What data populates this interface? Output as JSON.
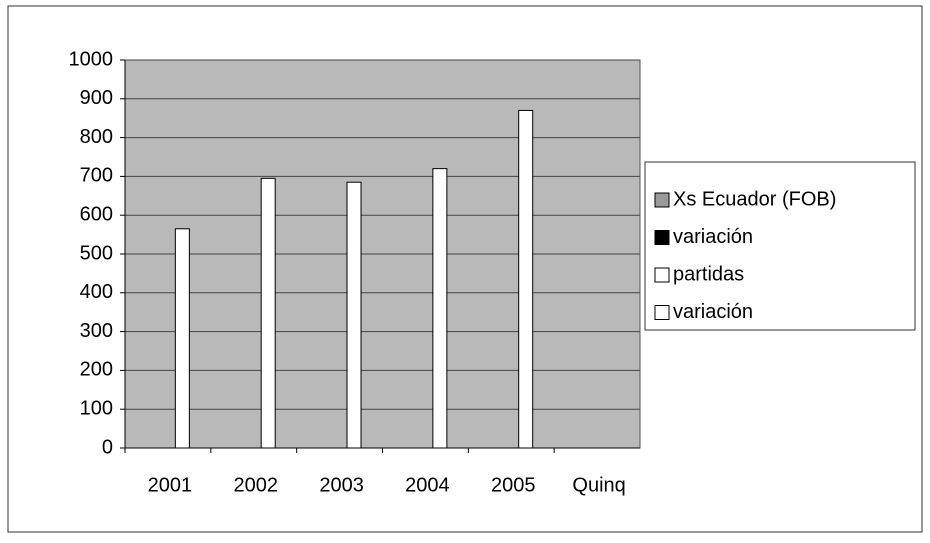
{
  "chart_data": {
    "type": "bar",
    "categories": [
      "2001",
      "2002",
      "2003",
      "2004",
      "2005",
      "Quinq"
    ],
    "series": [
      {
        "name": "Xs Ecuador (FOB)",
        "color": "#9a9a9a",
        "values": [
          null,
          null,
          null,
          null,
          null,
          null
        ]
      },
      {
        "name": "variación",
        "color": "#000000",
        "values": [
          null,
          null,
          null,
          null,
          null,
          null
        ]
      },
      {
        "name": "partidas",
        "color": "#ffffff",
        "values": [
          565,
          695,
          685,
          720,
          870,
          null
        ]
      },
      {
        "name": "variación",
        "color": "#ffffff",
        "values": [
          null,
          null,
          null,
          null,
          null,
          null
        ]
      }
    ],
    "ylim": [
      0,
      1000
    ],
    "yticks": [
      0,
      100,
      200,
      300,
      400,
      500,
      600,
      700,
      800,
      900,
      1000
    ],
    "grid": true,
    "legend": "right"
  }
}
